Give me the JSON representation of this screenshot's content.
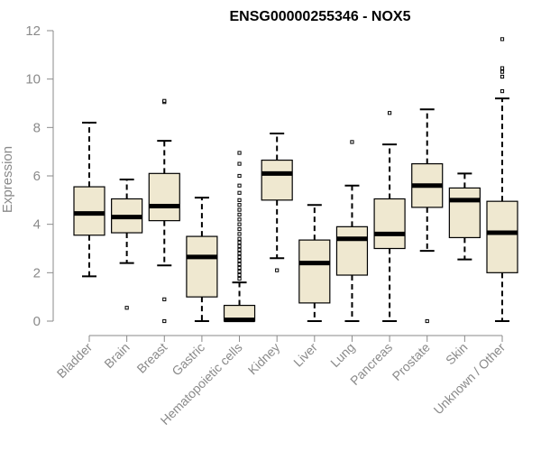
{
  "chart_data": {
    "type": "boxplot",
    "title": "ENSG00000255346 - NOX5",
    "xlabel": "",
    "ylabel": "Expression",
    "ylim": [
      0,
      12
    ],
    "yticks": [
      "0",
      "2",
      "4",
      "6",
      "8",
      "10",
      "12"
    ],
    "grid": false,
    "legend": "none",
    "colors": {
      "box_fill": "#efe8d0",
      "box_stroke": "#000000",
      "axis": "#8a8a8a"
    },
    "categories": [
      "Bladder",
      "Brain",
      "Breast",
      "Gastric",
      "Hematopoietic cells",
      "Kidney",
      "Liver",
      "Lung",
      "Pancreas",
      "Prostate",
      "Skin",
      "Unknown / Other"
    ],
    "boxes": [
      {
        "category": "Bladder",
        "whisker_low": 1.85,
        "q1": 3.55,
        "median": 4.45,
        "q3": 5.55,
        "whisker_high": 8.2,
        "outliers": []
      },
      {
        "category": "Brain",
        "whisker_low": 2.4,
        "q1": 3.65,
        "median": 4.3,
        "q3": 5.05,
        "whisker_high": 5.85,
        "outliers": [
          0.55
        ]
      },
      {
        "category": "Breast",
        "whisker_low": 2.3,
        "q1": 4.15,
        "median": 4.75,
        "q3": 6.1,
        "whisker_high": 7.45,
        "outliers": [
          0.0,
          0.9,
          9.05,
          9.1
        ]
      },
      {
        "category": "Gastric",
        "whisker_low": 0.0,
        "q1": 1.0,
        "median": 2.65,
        "q3": 3.5,
        "whisker_high": 5.1,
        "outliers": []
      },
      {
        "category": "Hematopoietic cells",
        "whisker_low": 0.0,
        "q1": 0.0,
        "median": 0.05,
        "q3": 0.65,
        "whisker_high": 1.6,
        "outliers": [
          1.75,
          1.9,
          2.05,
          2.2,
          2.35,
          2.5,
          2.65,
          2.8,
          2.95,
          3.1,
          3.25,
          3.4,
          3.6,
          3.8,
          4.0,
          4.2,
          4.4,
          4.6,
          4.8,
          5.0,
          5.3,
          5.6,
          6.0,
          6.5,
          6.95
        ]
      },
      {
        "category": "Kidney",
        "whisker_low": 2.6,
        "q1": 5.0,
        "median": 6.1,
        "q3": 6.65,
        "whisker_high": 7.75,
        "outliers": [
          2.1
        ]
      },
      {
        "category": "Liver",
        "whisker_low": 0.0,
        "q1": 0.75,
        "median": 2.4,
        "q3": 3.35,
        "whisker_high": 4.8,
        "outliers": []
      },
      {
        "category": "Lung",
        "whisker_low": 0.0,
        "q1": 1.9,
        "median": 3.4,
        "q3": 3.9,
        "whisker_high": 5.6,
        "outliers": [
          7.4
        ]
      },
      {
        "category": "Pancreas",
        "whisker_low": 0.0,
        "q1": 3.0,
        "median": 3.6,
        "q3": 5.05,
        "whisker_high": 7.3,
        "outliers": [
          8.6
        ]
      },
      {
        "category": "Prostate",
        "whisker_low": 2.9,
        "q1": 4.7,
        "median": 5.6,
        "q3": 6.5,
        "whisker_high": 8.75,
        "outliers": [
          0.0
        ]
      },
      {
        "category": "Skin",
        "whisker_low": 2.55,
        "q1": 3.45,
        "median": 5.0,
        "q3": 5.5,
        "whisker_high": 6.1,
        "outliers": []
      },
      {
        "category": "Unknown / Other",
        "whisker_low": 0.0,
        "q1": 2.0,
        "median": 3.65,
        "q3": 4.95,
        "whisker_high": 9.2,
        "outliers": [
          9.5,
          10.1,
          10.3,
          10.45,
          11.65
        ]
      }
    ]
  }
}
